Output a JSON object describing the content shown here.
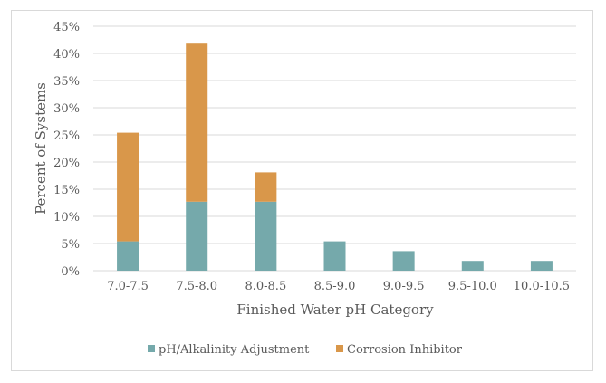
{
  "chart_data": {
    "type": "bar",
    "stacked": true,
    "title": "",
    "xlabel": "Finished Water pH Category",
    "ylabel": "Percent of Systems",
    "categories": [
      "7.0-7.5",
      "7.5-8.0",
      "8.0-8.5",
      "8.5-9.0",
      "9.0-9.5",
      "9.5-10.0",
      "10.0-10.5"
    ],
    "series": [
      {
        "name": "pH/Alkalinity Adjustment",
        "color": "#75a9ab",
        "values": [
          5.4,
          12.7,
          12.7,
          5.4,
          3.6,
          1.8,
          1.8
        ]
      },
      {
        "name": "Corrosion Inhibitor",
        "color": "#d9974a",
        "values": [
          20.0,
          29.1,
          5.4,
          0,
          0,
          0,
          0
        ]
      }
    ],
    "ylim": [
      0,
      45
    ],
    "yticks": [
      0,
      5,
      10,
      15,
      20,
      25,
      30,
      35,
      40,
      45
    ],
    "ytick_labels": [
      "0%",
      "5%",
      "10%",
      "15%",
      "20%",
      "25%",
      "30%",
      "35%",
      "40%",
      "45%"
    ],
    "grid": true,
    "legend": "bottom"
  }
}
